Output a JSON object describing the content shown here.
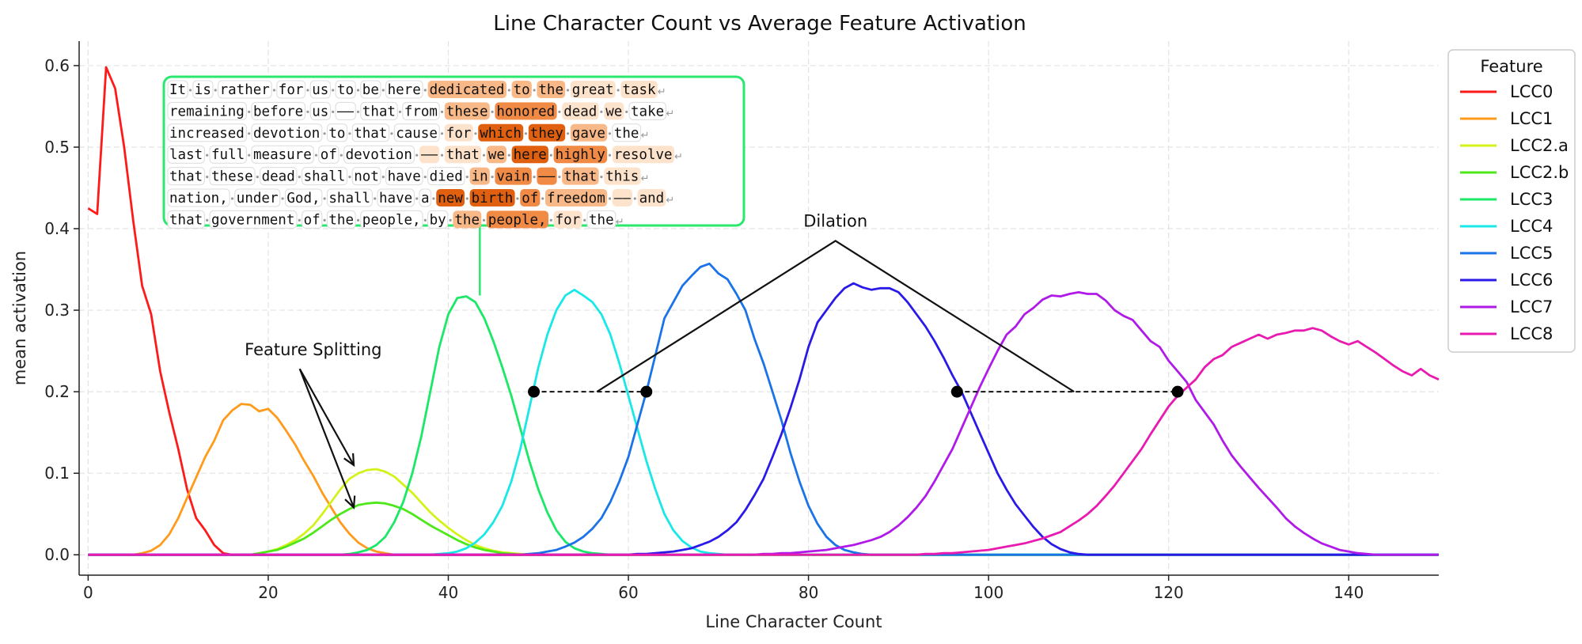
{
  "chart_data": {
    "type": "line",
    "title": "Line Character Count vs Average Feature Activation",
    "xlabel": "Line Character Count",
    "ylabel": "mean activation",
    "xlim": [
      -1,
      150
    ],
    "ylim": [
      -0.025,
      0.63
    ],
    "xticks": [
      0,
      20,
      40,
      60,
      80,
      100,
      120,
      140
    ],
    "yticks": [
      0.0,
      0.1,
      0.2,
      0.3,
      0.4,
      0.5,
      0.6
    ],
    "grid": true,
    "legend": {
      "title": "Feature",
      "placement": "top-right"
    },
    "x_step": 1,
    "series": [
      {
        "name": "LCC0",
        "color": "#ff1a1a",
        "x_start": 0,
        "x_end": 15,
        "values": [
          0.425,
          0.418,
          0.598,
          0.572,
          0.5,
          0.41,
          0.33,
          0.295,
          0.225,
          0.175,
          0.13,
          0.08,
          0.045,
          0.03,
          0.012,
          0.002
        ]
      },
      {
        "name": "LCC1",
        "color": "#ff9a1a",
        "x_start": 5,
        "x_end": 34,
        "values": [
          0.0,
          0.002,
          0.005,
          0.012,
          0.025,
          0.045,
          0.07,
          0.095,
          0.12,
          0.14,
          0.165,
          0.177,
          0.185,
          0.184,
          0.176,
          0.179,
          0.168,
          0.152,
          0.135,
          0.115,
          0.097,
          0.076,
          0.058,
          0.04,
          0.026,
          0.015,
          0.008,
          0.004,
          0.002,
          0.0
        ]
      },
      {
        "name": "LCC2.a",
        "color": "#d4f21a",
        "x_start": 18,
        "x_end": 50,
        "values": [
          0.0,
          0.002,
          0.004,
          0.007,
          0.012,
          0.018,
          0.026,
          0.036,
          0.05,
          0.065,
          0.08,
          0.093,
          0.1,
          0.104,
          0.105,
          0.102,
          0.096,
          0.086,
          0.076,
          0.064,
          0.052,
          0.042,
          0.033,
          0.025,
          0.018,
          0.012,
          0.008,
          0.005,
          0.003,
          0.002,
          0.001,
          0.0,
          0.0
        ]
      },
      {
        "name": "LCC2.b",
        "color": "#4ee81a",
        "x_start": 18,
        "x_end": 52,
        "values": [
          0.0,
          0.002,
          0.004,
          0.006,
          0.01,
          0.015,
          0.02,
          0.027,
          0.035,
          0.043,
          0.05,
          0.056,
          0.061,
          0.063,
          0.064,
          0.063,
          0.06,
          0.056,
          0.05,
          0.043,
          0.036,
          0.03,
          0.024,
          0.018,
          0.013,
          0.009,
          0.006,
          0.004,
          0.002,
          0.001,
          0.0,
          0.0,
          0.0,
          0.0,
          0.0
        ]
      },
      {
        "name": "LCC3",
        "color": "#1ae866",
        "x_start": 28,
        "x_end": 60,
        "values": [
          0.0,
          0.001,
          0.003,
          0.006,
          0.012,
          0.022,
          0.04,
          0.065,
          0.1,
          0.145,
          0.2,
          0.255,
          0.295,
          0.315,
          0.317,
          0.31,
          0.29,
          0.262,
          0.23,
          0.195,
          0.155,
          0.115,
          0.08,
          0.052,
          0.03,
          0.016,
          0.008,
          0.004,
          0.002,
          0.001,
          0.0,
          0.0,
          0.0
        ]
      },
      {
        "name": "LCC4",
        "color": "#1ae8e8",
        "x_start": 38,
        "x_end": 74,
        "values": [
          0.0,
          0.001,
          0.002,
          0.004,
          0.008,
          0.015,
          0.025,
          0.04,
          0.06,
          0.09,
          0.13,
          0.18,
          0.23,
          0.27,
          0.3,
          0.318,
          0.325,
          0.318,
          0.31,
          0.295,
          0.27,
          0.235,
          0.195,
          0.155,
          0.115,
          0.08,
          0.05,
          0.03,
          0.017,
          0.009,
          0.004,
          0.002,
          0.001,
          0.0,
          0.0,
          0.0,
          0.0
        ]
      },
      {
        "name": "LCC5",
        "color": "#1a73e8",
        "x_start": 48,
        "x_end": 90,
        "values": [
          0.0,
          0.001,
          0.002,
          0.004,
          0.006,
          0.01,
          0.015,
          0.022,
          0.032,
          0.045,
          0.065,
          0.09,
          0.12,
          0.16,
          0.2,
          0.245,
          0.29,
          0.31,
          0.33,
          0.342,
          0.353,
          0.357,
          0.345,
          0.338,
          0.32,
          0.3,
          0.265,
          0.235,
          0.2,
          0.165,
          0.125,
          0.09,
          0.06,
          0.038,
          0.022,
          0.012,
          0.006,
          0.003,
          0.001,
          0.0,
          0.0,
          0.0,
          0.0
        ]
      },
      {
        "name": "LCC6",
        "color": "#2a1ae8",
        "x_start": 58,
        "x_end": 112,
        "values": [
          0.0,
          0.0,
          0.0,
          0.001,
          0.001,
          0.002,
          0.003,
          0.004,
          0.006,
          0.008,
          0.012,
          0.016,
          0.022,
          0.03,
          0.04,
          0.055,
          0.073,
          0.093,
          0.12,
          0.148,
          0.18,
          0.215,
          0.255,
          0.285,
          0.3,
          0.315,
          0.327,
          0.333,
          0.328,
          0.325,
          0.327,
          0.327,
          0.322,
          0.31,
          0.295,
          0.28,
          0.262,
          0.242,
          0.22,
          0.2,
          0.175,
          0.15,
          0.125,
          0.1,
          0.08,
          0.062,
          0.048,
          0.034,
          0.022,
          0.013,
          0.007,
          0.003,
          0.001,
          0.0,
          0.0
        ]
      },
      {
        "name": "LCC7",
        "color": "#b01ae8",
        "x_start": 70,
        "x_end": 150,
        "values": [
          0.0,
          0.0,
          0.0,
          0.0,
          0.0,
          0.001,
          0.001,
          0.002,
          0.002,
          0.003,
          0.004,
          0.005,
          0.006,
          0.008,
          0.01,
          0.012,
          0.015,
          0.018,
          0.022,
          0.028,
          0.036,
          0.046,
          0.058,
          0.072,
          0.09,
          0.11,
          0.13,
          0.155,
          0.18,
          0.205,
          0.228,
          0.25,
          0.27,
          0.28,
          0.295,
          0.303,
          0.313,
          0.318,
          0.317,
          0.32,
          0.322,
          0.32,
          0.32,
          0.312,
          0.3,
          0.293,
          0.288,
          0.275,
          0.262,
          0.255,
          0.238,
          0.225,
          0.212,
          0.19,
          0.175,
          0.16,
          0.14,
          0.122,
          0.108,
          0.095,
          0.082,
          0.07,
          0.058,
          0.045,
          0.035,
          0.027,
          0.02,
          0.014,
          0.01,
          0.006,
          0.004,
          0.002,
          0.001,
          0.0,
          0.0,
          0.0,
          0.0,
          0.0,
          0.0,
          0.0,
          0.0
        ]
      },
      {
        "name": "LCC8",
        "color": "#e81ab0",
        "x_start": 90,
        "x_end": 150,
        "values": [
          0.0,
          0.0,
          0.0,
          0.001,
          0.001,
          0.002,
          0.002,
          0.003,
          0.004,
          0.005,
          0.006,
          0.008,
          0.01,
          0.012,
          0.014,
          0.017,
          0.02,
          0.024,
          0.028,
          0.035,
          0.042,
          0.05,
          0.06,
          0.072,
          0.085,
          0.1,
          0.115,
          0.13,
          0.148,
          0.165,
          0.182,
          0.195,
          0.205,
          0.215,
          0.23,
          0.24,
          0.245,
          0.255,
          0.26,
          0.265,
          0.27,
          0.265,
          0.27,
          0.272,
          0.275,
          0.275,
          0.278,
          0.275,
          0.268,
          0.262,
          0.258,
          0.262,
          0.255,
          0.248,
          0.24,
          0.232,
          0.225,
          0.22,
          0.228,
          0.22,
          0.215
        ]
      }
    ],
    "annotations": {
      "feature_splitting": {
        "text": "Feature Splitting",
        "arrow_targets": [
          [
            29.5,
            0.11
          ],
          [
            29.5,
            0.058
          ]
        ]
      },
      "dilation": {
        "text": "Dilation",
        "points": [
          [
            49.5,
            0.2
          ],
          [
            62.0,
            0.2
          ],
          [
            96.5,
            0.2
          ],
          [
            121.0,
            0.2
          ]
        ],
        "apex": [
          83,
          0.385
        ],
        "left_foot": [
          56.5,
          0.2
        ],
        "right_foot": [
          109.5,
          0.2
        ]
      },
      "text_box_anchor_x": 43.5,
      "text_box_color": "#2ae86e"
    },
    "text_sample": [
      [
        [
          "It",
          0
        ],
        [
          "is",
          0
        ],
        [
          "rather",
          0
        ],
        [
          "for",
          0
        ],
        [
          "us",
          0
        ],
        [
          "to",
          0
        ],
        [
          "be",
          0
        ],
        [
          "here",
          0
        ],
        [
          "dedicated",
          2
        ],
        [
          "to",
          2
        ],
        [
          "the",
          2
        ],
        [
          "great",
          1
        ],
        [
          "task",
          1
        ]
      ],
      [
        [
          "remaining",
          0
        ],
        [
          "before",
          0
        ],
        [
          "us",
          0
        ],
        [
          "——",
          0
        ],
        [
          "that",
          0
        ],
        [
          "from",
          0
        ],
        [
          "these",
          2
        ],
        [
          "honored",
          3
        ],
        [
          "dead",
          1
        ],
        [
          "we",
          1
        ],
        [
          "take",
          0
        ]
      ],
      [
        [
          "increased",
          0
        ],
        [
          "devotion",
          0
        ],
        [
          "to",
          0
        ],
        [
          "that",
          0
        ],
        [
          "cause",
          0
        ],
        [
          "for",
          1
        ],
        [
          "which",
          4
        ],
        [
          "they",
          4
        ],
        [
          "gave",
          2
        ],
        [
          "the",
          0
        ]
      ],
      [
        [
          "last",
          0
        ],
        [
          "full",
          0
        ],
        [
          "measure",
          0
        ],
        [
          "of",
          0
        ],
        [
          "devotion",
          0
        ],
        [
          "——",
          1
        ],
        [
          "that",
          1
        ],
        [
          "we",
          2
        ],
        [
          "here",
          4
        ],
        [
          "highly",
          3
        ],
        [
          "resolve",
          1
        ]
      ],
      [
        [
          "that",
          0
        ],
        [
          "these",
          0
        ],
        [
          "dead",
          0
        ],
        [
          "shall",
          0
        ],
        [
          "not",
          0
        ],
        [
          "have",
          0
        ],
        [
          "died",
          0
        ],
        [
          "in",
          2
        ],
        [
          "vain",
          3
        ],
        [
          "——",
          3
        ],
        [
          "that",
          2
        ],
        [
          "this",
          1
        ]
      ],
      [
        [
          "nation,",
          0
        ],
        [
          "under",
          0
        ],
        [
          "God,",
          0
        ],
        [
          "shall",
          0
        ],
        [
          "have",
          0
        ],
        [
          "a",
          0
        ],
        [
          "new",
          4
        ],
        [
          "birth",
          4
        ],
        [
          "of",
          3
        ],
        [
          "freedom",
          2
        ],
        [
          "——",
          1
        ],
        [
          "and",
          1
        ]
      ],
      [
        [
          "that",
          0
        ],
        [
          "government",
          0
        ],
        [
          "of",
          0
        ],
        [
          "the",
          0
        ],
        [
          "people,",
          0
        ],
        [
          "by",
          0
        ],
        [
          "the",
          2
        ],
        [
          "people,",
          3
        ],
        [
          "for",
          1
        ],
        [
          "the",
          0
        ]
      ]
    ],
    "highlight_colors": [
      "#ffffff",
      "#fde3cc",
      "#f8b887",
      "#f08a45",
      "#e06010"
    ]
  }
}
